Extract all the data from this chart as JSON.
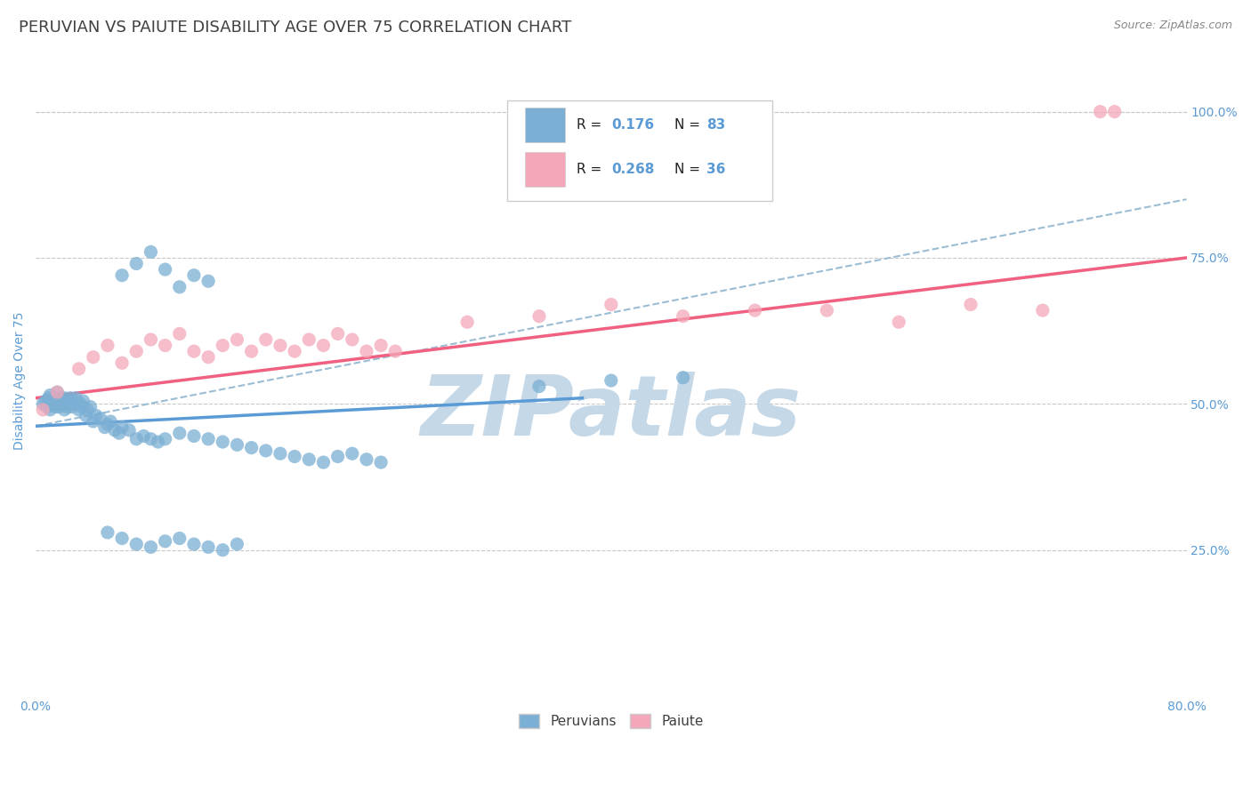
{
  "title": "PERUVIAN VS PAIUTE DISABILITY AGE OVER 75 CORRELATION CHART",
  "source_text": "Source: ZipAtlas.com",
  "ylabel": "Disability Age Over 75",
  "xlim": [
    0.0,
    0.8
  ],
  "ylim": [
    0.0,
    1.08
  ],
  "ytick_labels": [
    "25.0%",
    "50.0%",
    "75.0%",
    "100.0%"
  ],
  "ytick_positions": [
    0.25,
    0.5,
    0.75,
    1.0
  ],
  "blue_color": "#7bafd4",
  "pink_color": "#f4a7b9",
  "blue_line_color": "#5b9bd5",
  "pink_line_color": "#f06080",
  "trend_line_color": "#9bbdd4",
  "background_color": "#ffffff",
  "grid_color": "#c8c8c8",
  "title_color": "#404040",
  "axis_label_color": "#5b9bd5",
  "peruvians_x": [
    0.005,
    0.007,
    0.008,
    0.009,
    0.01,
    0.01,
    0.011,
    0.012,
    0.013,
    0.014,
    0.015,
    0.015,
    0.016,
    0.017,
    0.018,
    0.019,
    0.02,
    0.02,
    0.021,
    0.022,
    0.023,
    0.024,
    0.025,
    0.026,
    0.027,
    0.028,
    0.03,
    0.031,
    0.032,
    0.033,
    0.035,
    0.036,
    0.038,
    0.04,
    0.042,
    0.045,
    0.048,
    0.05,
    0.052,
    0.055,
    0.058,
    0.06,
    0.065,
    0.07,
    0.075,
    0.08,
    0.085,
    0.09,
    0.1,
    0.11,
    0.12,
    0.13,
    0.14,
    0.15,
    0.16,
    0.17,
    0.18,
    0.19,
    0.2,
    0.21,
    0.22,
    0.23,
    0.24,
    0.06,
    0.07,
    0.08,
    0.09,
    0.1,
    0.11,
    0.12,
    0.05,
    0.06,
    0.07,
    0.08,
    0.09,
    0.1,
    0.11,
    0.12,
    0.13,
    0.14,
    0.35,
    0.4,
    0.45
  ],
  "peruvians_y": [
    0.5,
    0.505,
    0.495,
    0.51,
    0.49,
    0.515,
    0.5,
    0.505,
    0.51,
    0.495,
    0.5,
    0.52,
    0.495,
    0.51,
    0.5,
    0.505,
    0.49,
    0.51,
    0.5,
    0.495,
    0.505,
    0.51,
    0.495,
    0.5,
    0.505,
    0.51,
    0.49,
    0.5,
    0.495,
    0.505,
    0.48,
    0.49,
    0.495,
    0.47,
    0.48,
    0.475,
    0.46,
    0.465,
    0.47,
    0.455,
    0.45,
    0.46,
    0.455,
    0.44,
    0.445,
    0.44,
    0.435,
    0.44,
    0.45,
    0.445,
    0.44,
    0.435,
    0.43,
    0.425,
    0.42,
    0.415,
    0.41,
    0.405,
    0.4,
    0.41,
    0.415,
    0.405,
    0.4,
    0.72,
    0.74,
    0.76,
    0.73,
    0.7,
    0.72,
    0.71,
    0.28,
    0.27,
    0.26,
    0.255,
    0.265,
    0.27,
    0.26,
    0.255,
    0.25,
    0.26,
    0.53,
    0.54,
    0.545
  ],
  "paiute_x": [
    0.005,
    0.015,
    0.03,
    0.04,
    0.05,
    0.06,
    0.07,
    0.08,
    0.09,
    0.1,
    0.11,
    0.12,
    0.13,
    0.14,
    0.15,
    0.16,
    0.17,
    0.18,
    0.19,
    0.2,
    0.21,
    0.22,
    0.23,
    0.24,
    0.25,
    0.3,
    0.35,
    0.4,
    0.45,
    0.5,
    0.55,
    0.6,
    0.65,
    0.7,
    0.74,
    0.75
  ],
  "paiute_y": [
    0.49,
    0.52,
    0.56,
    0.58,
    0.6,
    0.57,
    0.59,
    0.61,
    0.6,
    0.62,
    0.59,
    0.58,
    0.6,
    0.61,
    0.59,
    0.61,
    0.6,
    0.59,
    0.61,
    0.6,
    0.62,
    0.61,
    0.59,
    0.6,
    0.59,
    0.64,
    0.65,
    0.67,
    0.65,
    0.66,
    0.66,
    0.64,
    0.67,
    0.66,
    1.0,
    1.0
  ],
  "blue_trendline_x": [
    0.0,
    0.38
  ],
  "blue_trendline_y": [
    0.462,
    0.51
  ],
  "pink_trendline_x": [
    0.0,
    0.8
  ],
  "pink_trendline_y": [
    0.51,
    0.75
  ],
  "dashed_trendline_x": [
    0.0,
    0.8
  ],
  "dashed_trendline_y": [
    0.462,
    0.85
  ],
  "watermark_text": "ZIPatlas",
  "watermark_color": "#c5d8e8",
  "legend_blue_r": "0.176",
  "legend_blue_n": "83",
  "legend_pink_r": "0.268",
  "legend_pink_n": "36"
}
